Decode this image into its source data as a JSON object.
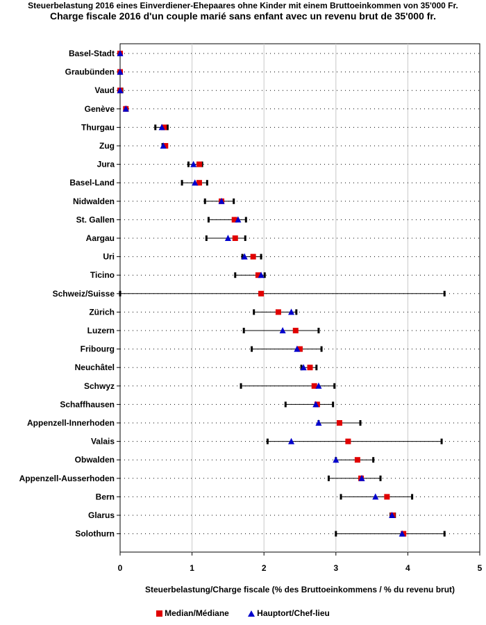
{
  "chart_data": {
    "type": "scatter",
    "title": "Steuerbelastung 2016 eines Einverdiener-Ehepaares ohne Kinder mit einem Bruttoeinkommen von 35'000 Fr.",
    "subtitle": "Charge fiscale 2016 d'un couple marié sans enfant avec un revenu brut de 35'000 fr.",
    "xlabel": "Steuerbelastung/Charge fiscale (% des Bruttoeinkommens / % du revenu brut)",
    "xlim": [
      0,
      5
    ],
    "xticks": [
      0,
      1,
      2,
      3,
      4,
      5
    ],
    "grid": "vertical",
    "legend": [
      {
        "name": "Median/Médiane",
        "marker": "square",
        "color": "#e00000"
      },
      {
        "name": "Hauptort/Chef-lieu",
        "marker": "triangle",
        "color": "#0000cc"
      }
    ],
    "rows": [
      {
        "label": "Basel-Stadt",
        "min": 0.0,
        "max": 0.0,
        "median": 0.0,
        "capital": 0.0
      },
      {
        "label": "Graubünden",
        "min": 0.0,
        "max": 0.0,
        "median": 0.0,
        "capital": 0.0
      },
      {
        "label": "Vaud",
        "min": 0.0,
        "max": 0.03,
        "median": 0.0,
        "capital": 0.0
      },
      {
        "label": "Genève",
        "min": 0.07,
        "max": 0.09,
        "median": 0.08,
        "capital": 0.08
      },
      {
        "label": "Thurgau",
        "min": 0.49,
        "max": 0.66,
        "median": 0.61,
        "capital": 0.58
      },
      {
        "label": "Zug",
        "min": 0.59,
        "max": 0.65,
        "median": 0.63,
        "capital": 0.6
      },
      {
        "label": "Jura",
        "min": 0.95,
        "max": 1.14,
        "median": 1.1,
        "capital": 1.02
      },
      {
        "label": "Basel-Land",
        "min": 0.86,
        "max": 1.21,
        "median": 1.1,
        "capital": 1.04
      },
      {
        "label": "Nidwalden",
        "min": 1.18,
        "max": 1.58,
        "median": 1.41,
        "capital": 1.41
      },
      {
        "label": "St. Gallen",
        "min": 1.23,
        "max": 1.75,
        "median": 1.59,
        "capital": 1.64
      },
      {
        "label": "Aargau",
        "min": 1.2,
        "max": 1.74,
        "median": 1.6,
        "capital": 1.5
      },
      {
        "label": "Uri",
        "min": 1.7,
        "max": 1.96,
        "median": 1.85,
        "capital": 1.73
      },
      {
        "label": "Ticino",
        "min": 1.6,
        "max": 2.01,
        "median": 1.92,
        "capital": 1.96
      },
      {
        "label": "Schweiz/Suisse",
        "min": 0.0,
        "max": 4.51,
        "median": 1.96,
        "capital": null
      },
      {
        "label": "Zürich",
        "min": 1.86,
        "max": 2.45,
        "median": 2.2,
        "capital": 2.38
      },
      {
        "label": "Luzern",
        "min": 1.72,
        "max": 2.76,
        "median": 2.44,
        "capital": 2.26
      },
      {
        "label": "Fribourg",
        "min": 1.83,
        "max": 2.8,
        "median": 2.5,
        "capital": 2.46
      },
      {
        "label": "Neuchâtel",
        "min": 2.52,
        "max": 2.73,
        "median": 2.64,
        "capital": 2.55
      },
      {
        "label": "Schwyz",
        "min": 1.68,
        "max": 2.98,
        "median": 2.7,
        "capital": 2.76
      },
      {
        "label": "Schaffhausen",
        "min": 2.3,
        "max": 2.96,
        "median": 2.74,
        "capital": 2.72
      },
      {
        "label": "Appenzell-Innerhoden",
        "min": 2.76,
        "max": 3.34,
        "median": 3.05,
        "capital": 2.76
      },
      {
        "label": "Valais",
        "min": 2.05,
        "max": 4.47,
        "median": 3.17,
        "capital": 2.38
      },
      {
        "label": "Obwalden",
        "min": 3.0,
        "max": 3.52,
        "median": 3.3,
        "capital": 3.0
      },
      {
        "label": "Appenzell-Ausserhoden",
        "min": 2.9,
        "max": 3.62,
        "median": 3.35,
        "capital": 3.36
      },
      {
        "label": "Bern",
        "min": 3.07,
        "max": 4.06,
        "median": 3.71,
        "capital": 3.55
      },
      {
        "label": "Glarus",
        "min": 3.76,
        "max": 3.82,
        "median": 3.79,
        "capital": 3.78
      },
      {
        "label": "Solothurn",
        "min": 3.0,
        "max": 4.51,
        "median": 3.94,
        "capital": 3.92
      }
    ]
  }
}
